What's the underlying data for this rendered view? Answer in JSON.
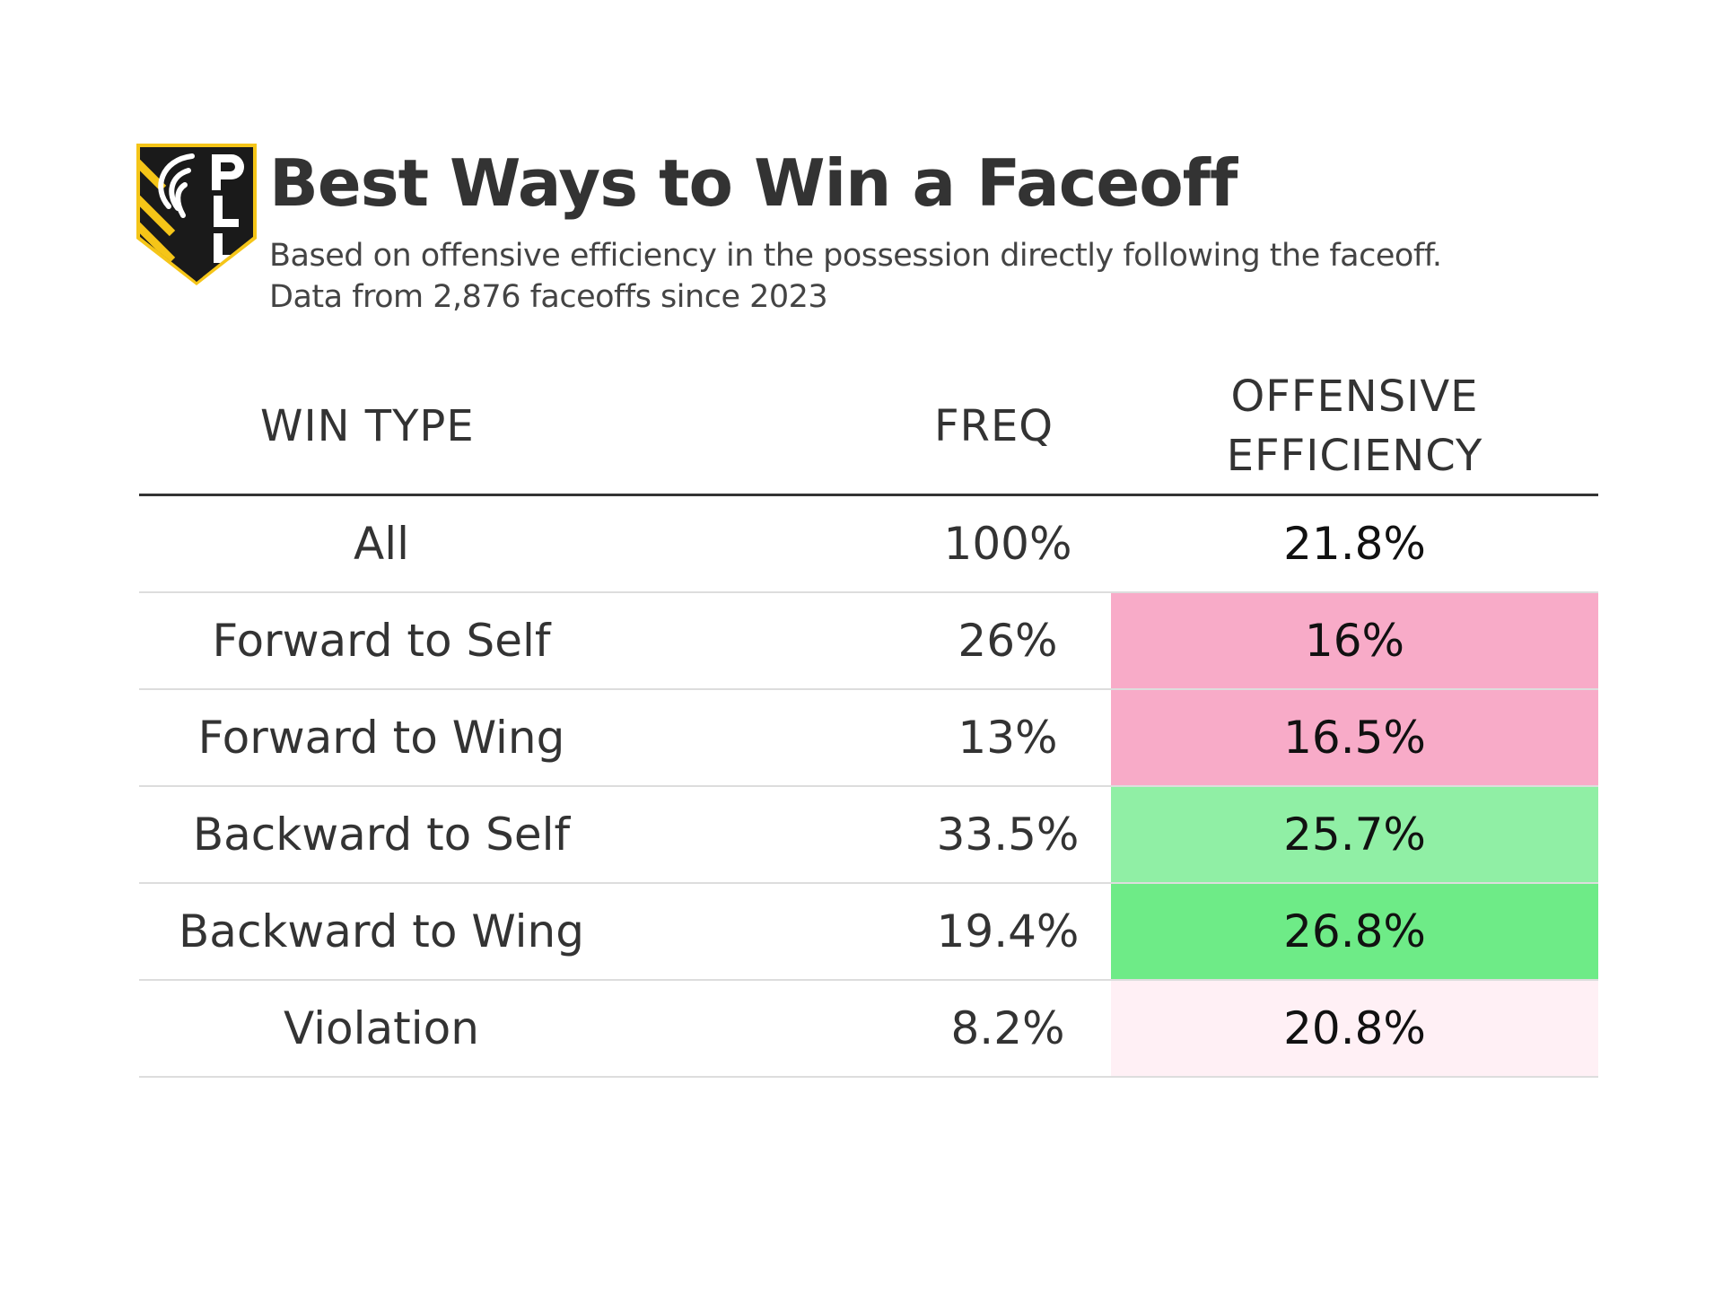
{
  "title": "Best Ways to Win a Faceoff",
  "subtitle": {
    "line1": "Based on offensive efficiency in the possession directly following the faceoff.",
    "line2": "Data from 2,876 faceoffs since 2023"
  },
  "logo": {
    "icon": "pll-shield-logo",
    "text": "PLL",
    "colors": {
      "gold": "#f5c518",
      "black": "#1a1a1a",
      "white": "#ffffff"
    }
  },
  "chart_data": {
    "type": "table",
    "columns": [
      "WIN TYPE",
      "FREQ",
      "OFFENSIVE\nEFFICIENCY"
    ],
    "rows": [
      {
        "win_type": "All",
        "freq": "100%",
        "efficiency": "21.8%",
        "color": "#ffffff"
      },
      {
        "win_type": "Forward to Self",
        "freq": "26%",
        "efficiency": "16%",
        "color": "#f8abc8"
      },
      {
        "win_type": "Forward to Wing",
        "freq": "13%",
        "efficiency": "16.5%",
        "color": "#f8abc8"
      },
      {
        "win_type": "Backward to Self",
        "freq": "33.5%",
        "efficiency": "25.7%",
        "color": "#90efa5"
      },
      {
        "win_type": "Backward to Wing",
        "freq": "19.4%",
        "efficiency": "26.8%",
        "color": "#6eeb87"
      },
      {
        "win_type": "Violation",
        "freq": "8.2%",
        "efficiency": "20.8%",
        "color": "#fff0f5"
      }
    ]
  }
}
